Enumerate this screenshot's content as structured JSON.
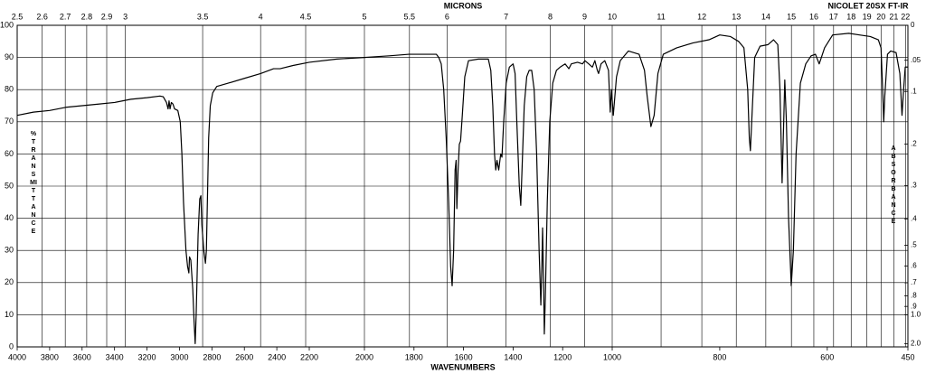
{
  "chart_data": {
    "type": "line",
    "x_label": "WAVENUMBERS",
    "top_label": "MICRONS",
    "instrument": "NICOLET 20SX FT-IR",
    "y_label": "%TRANSMITTANCE",
    "y2_label": "ABSORBANCE",
    "xlim": [
      4000,
      450
    ],
    "ylim": [
      0,
      100
    ],
    "xticks": [
      4000,
      3800,
      3600,
      3400,
      3200,
      3000,
      2800,
      2600,
      2400,
      2200,
      2000,
      1800,
      1600,
      1400,
      1200,
      1000,
      800,
      600,
      450
    ],
    "yticks": [
      0,
      10,
      20,
      30,
      40,
      50,
      60,
      70,
      80,
      90,
      100
    ],
    "top_xticks": [
      2.5,
      2.6,
      2.7,
      2.8,
      2.9,
      3,
      3.5,
      4,
      4.5,
      5,
      5.5,
      6,
      7,
      8,
      9,
      10,
      11,
      12,
      13,
      14,
      15,
      16,
      17,
      18,
      19,
      20,
      21,
      22
    ],
    "y2ticks": [
      0,
      {
        "value": 0.05,
        "label": ".05"
      },
      {
        "value": 0.1,
        "label": ".1"
      },
      {
        "value": 0.2,
        "label": ".2"
      },
      {
        "value": 0.3,
        "label": ".3"
      },
      {
        "value": 0.4,
        "label": ".4"
      },
      {
        "value": 0.5,
        "label": ".5"
      },
      {
        "value": 0.6,
        "label": ".6"
      },
      {
        "value": 0.7,
        "label": ".7"
      },
      {
        "value": 0.8,
        "label": ".8"
      },
      {
        "value": 0.9,
        "label": ".9"
      },
      {
        "value": 1,
        "label": "1.0"
      },
      {
        "value": 2,
        "label": "2.0"
      }
    ],
    "grid": true,
    "color": "#000000",
    "x": [
      4000,
      3900,
      3800,
      3700,
      3600,
      3500,
      3400,
      3300,
      3200,
      3120,
      3100,
      3080,
      3070,
      3064,
      3058,
      3050,
      3040,
      3030,
      3010,
      2995,
      2985,
      2975,
      2960,
      2950,
      2942,
      2938,
      2930,
      2918,
      2910,
      2903,
      2897,
      2885,
      2875,
      2868,
      2862,
      2850,
      2840,
      2834,
      2828,
      2820,
      2810,
      2795,
      2770,
      2700,
      2600,
      2500,
      2420,
      2380,
      2300,
      2200,
      2100,
      2000,
      1900,
      1820,
      1760,
      1710,
      1700,
      1690,
      1680,
      1670,
      1660,
      1652,
      1646,
      1640,
      1634,
      1630,
      1627,
      1622,
      1617,
      1612,
      1605,
      1595,
      1580,
      1540,
      1500,
      1490,
      1482,
      1475,
      1470,
      1465,
      1458,
      1450,
      1445,
      1438,
      1428,
      1415,
      1400,
      1392,
      1385,
      1375,
      1369,
      1364,
      1355,
      1345,
      1335,
      1325,
      1315,
      1305,
      1295,
      1288,
      1284,
      1281,
      1277,
      1274,
      1270,
      1262,
      1252,
      1240,
      1225,
      1210,
      1190,
      1175,
      1165,
      1140,
      1120,
      1110,
      1095,
      1080,
      1070,
      1060,
      1055,
      1045,
      1030,
      1015,
      1008,
      1003,
      998,
      992,
      985,
      970,
      950,
      940,
      935,
      928,
      922,
      915,
      905,
      880,
      850,
      820,
      800,
      780,
      765,
      755,
      748,
      745,
      743,
      740,
      735,
      725,
      710,
      700,
      692,
      688,
      684,
      681,
      679,
      676,
      672,
      667,
      663,
      658,
      650,
      640,
      630,
      622,
      615,
      612,
      605,
      590,
      560,
      540,
      520,
      505,
      500,
      497,
      495,
      493,
      488,
      482,
      472,
      465,
      461,
      458,
      455,
      450
    ],
    "values": [
      72,
      73,
      73.5,
      74.5,
      75,
      75.5,
      76,
      77,
      77.5,
      78,
      77.8,
      76,
      74,
      76.5,
      74,
      76,
      75.5,
      74,
      73.5,
      70,
      60,
      45,
      30,
      25,
      23,
      28,
      27,
      18,
      8,
      1,
      10,
      35,
      46,
      47,
      38,
      30,
      26,
      30,
      45,
      65,
      75,
      79,
      81,
      82,
      83.5,
      85,
      86.5,
      86.5,
      87.5,
      88.5,
      89.5,
      90,
      90.5,
      91,
      91,
      91,
      90,
      88,
      80,
      65,
      45,
      25,
      19,
      30,
      55,
      58,
      43,
      55,
      63,
      64,
      72,
      84,
      89,
      89.5,
      89.5,
      86,
      75,
      60,
      55,
      58,
      55,
      60,
      59,
      70,
      82,
      87,
      88,
      85,
      70,
      50,
      44,
      55,
      75,
      84,
      86,
      86,
      80,
      60,
      30,
      13,
      25,
      37,
      20,
      4,
      15,
      45,
      70,
      82,
      86,
      87,
      88,
      86.5,
      88,
      88.5,
      88,
      89,
      88,
      87,
      89,
      86,
      85,
      88,
      89,
      86,
      73,
      80,
      72,
      84,
      89,
      92,
      91,
      86,
      78,
      68.5,
      72,
      85,
      91,
      93,
      94.5,
      95.5,
      97,
      96.5,
      95,
      93,
      80,
      65,
      61,
      72,
      90,
      93.5,
      94,
      95.5,
      94,
      80,
      51,
      70,
      83,
      70,
      40,
      19,
      30,
      60,
      82,
      88,
      90.5,
      91,
      88,
      89.5,
      93,
      97,
      97.5,
      97,
      96.5,
      95.5,
      93,
      80,
      70,
      78,
      91,
      92,
      91.5,
      85,
      72,
      80,
      87,
      87
    ]
  }
}
